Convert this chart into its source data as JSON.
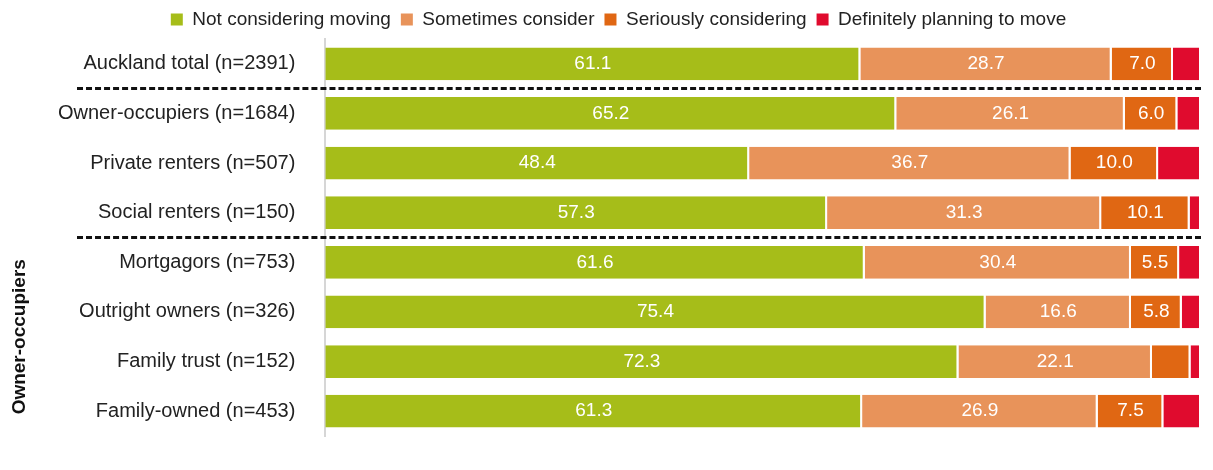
{
  "chart_data": {
    "type": "bar",
    "orientation": "horizontal",
    "stacked": true,
    "ylabel": "Owner-occupiers",
    "legend": "top",
    "tick_labels": "y",
    "xlim": [
      0,
      100
    ],
    "categories": [
      "Auckland total (n=2391)",
      "Owner-occupiers (n=1684)",
      "Private renters (n=507)",
      "Social renters (n=150)",
      "Mortgagors (n=753)",
      "Outright owners (n=326)",
      "Family trust (n=152)",
      "Family-owned (n=453)"
    ],
    "series": [
      {
        "name": "Not considering moving",
        "color": "#a6bd19",
        "values": [
          61.1,
          65.2,
          48.4,
          57.3,
          61.6,
          75.4,
          72.3,
          61.3
        ],
        "value_labels": [
          "61.1",
          "65.2",
          "48.4",
          "57.3",
          "61.6",
          "75.4",
          "72.3",
          "61.3"
        ]
      },
      {
        "name": "Sometimes consider",
        "color": "#e8935a",
        "values": [
          28.7,
          26.1,
          36.7,
          31.3,
          30.4,
          16.6,
          22.1,
          26.9
        ],
        "value_labels": [
          "28.7",
          "26.1",
          "36.7",
          "31.3",
          "30.4",
          "16.6",
          "22.1",
          "26.9"
        ]
      },
      {
        "name": "Seriously considering",
        "color": "#e06713",
        "values": [
          7.0,
          6.0,
          10.0,
          10.1,
          5.5,
          5.8,
          4.4,
          7.5
        ],
        "value_labels": [
          "7.0",
          "6.0",
          "10.0",
          "10.1",
          "5.5",
          "5.8",
          null,
          "7.5"
        ]
      },
      {
        "name": "Definitely planning to move",
        "color": "#e00b2e",
        "values": [
          3.2,
          2.7,
          4.9,
          1.3,
          2.5,
          2.2,
          1.2,
          4.3
        ]
      }
    ]
  }
}
